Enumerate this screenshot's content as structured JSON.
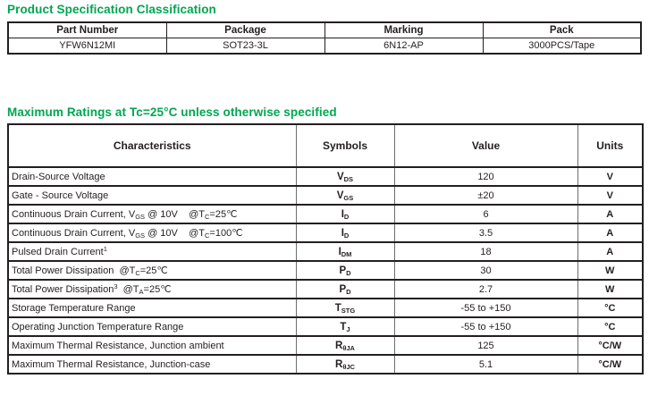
{
  "colors": {
    "title_green": "#00a651",
    "border_dark": "#231f20",
    "border_gray": "#6d6e71",
    "text": "#231f20"
  },
  "product_table": {
    "title": "Product Specification Classification",
    "headers": [
      "Part Number",
      "Package",
      "Marking",
      "Pack"
    ],
    "row": [
      "YFW6N12MI",
      "SOT23-3L",
      "6N12-AP",
      "3000PCS/Tape"
    ]
  },
  "max_ratings": {
    "title": "Maximum Ratings at Tc=25°C unless otherwise specified",
    "headers": [
      "Characteristics",
      "Symbols",
      "Value",
      "Units"
    ],
    "rows": [
      {
        "characteristic": [
          [
            "t",
            "Drain-Source Voltage"
          ]
        ],
        "symbol": [
          [
            "t",
            "V"
          ],
          [
            "sub",
            "DS"
          ]
        ],
        "value": "120",
        "units": "V"
      },
      {
        "characteristic": [
          [
            "t",
            "Gate - Source Voltage"
          ]
        ],
        "symbol": [
          [
            "t",
            "V"
          ],
          [
            "sub",
            "GS"
          ]
        ],
        "value": "±20",
        "units": "V"
      },
      {
        "characteristic": [
          [
            "t",
            "Continuous Drain Current, V"
          ],
          [
            "sub",
            "GS"
          ],
          [
            "t",
            " @ 10V    @T"
          ],
          [
            "sub",
            "C"
          ],
          [
            "t",
            "=25℃"
          ]
        ],
        "symbol": [
          [
            "t",
            "I"
          ],
          [
            "sub",
            "D"
          ]
        ],
        "value": "6",
        "units": "A"
      },
      {
        "characteristic": [
          [
            "t",
            "Continuous Drain Current, V"
          ],
          [
            "sub",
            "GS"
          ],
          [
            "t",
            " @ 10V    @T"
          ],
          [
            "sub",
            "C"
          ],
          [
            "t",
            "=100℃"
          ]
        ],
        "symbol": [
          [
            "t",
            "I"
          ],
          [
            "sub",
            "D"
          ]
        ],
        "value": "3.5",
        "units": "A"
      },
      {
        "characteristic": [
          [
            "t",
            "Pulsed Drain Current"
          ],
          [
            "sup",
            "1"
          ]
        ],
        "symbol": [
          [
            "t",
            "I"
          ],
          [
            "sub",
            "DM"
          ]
        ],
        "value": "18",
        "units": "A"
      },
      {
        "characteristic": [
          [
            "t",
            "Total Power Dissipation  @T"
          ],
          [
            "sub",
            "C"
          ],
          [
            "t",
            "=25℃"
          ]
        ],
        "symbol": [
          [
            "t",
            "P"
          ],
          [
            "sub",
            "D"
          ]
        ],
        "value": "30",
        "units": "W"
      },
      {
        "characteristic": [
          [
            "t",
            "Total Power Dissipation"
          ],
          [
            "sup",
            "3"
          ],
          [
            "t",
            "  @T"
          ],
          [
            "sub",
            "A"
          ],
          [
            "t",
            "=25℃"
          ]
        ],
        "symbol": [
          [
            "t",
            "P"
          ],
          [
            "sub",
            "D"
          ]
        ],
        "value": "2.7",
        "units": "W"
      },
      {
        "characteristic": [
          [
            "t",
            "Storage Temperature Range"
          ]
        ],
        "symbol": [
          [
            "t",
            "T"
          ],
          [
            "sub",
            "STG"
          ]
        ],
        "value": "-55 to +150",
        "units": "°C"
      },
      {
        "characteristic": [
          [
            "t",
            "Operating Junction Temperature Range"
          ]
        ],
        "symbol": [
          [
            "t",
            "T"
          ],
          [
            "sub",
            "J"
          ]
        ],
        "value": "-55 to +150",
        "units": "°C"
      },
      {
        "characteristic": [
          [
            "t",
            "Maximum Thermal Resistance, Junction ambient"
          ]
        ],
        "symbol": [
          [
            "t",
            "R"
          ],
          [
            "sub",
            "θJA"
          ]
        ],
        "value": "125",
        "units": "°C/W"
      },
      {
        "characteristic": [
          [
            "t",
            "Maximum Thermal Resistance, Junction-case"
          ]
        ],
        "symbol": [
          [
            "t",
            "R"
          ],
          [
            "sub",
            "θJC"
          ]
        ],
        "value": "5.1",
        "units": "°C/W"
      }
    ]
  }
}
